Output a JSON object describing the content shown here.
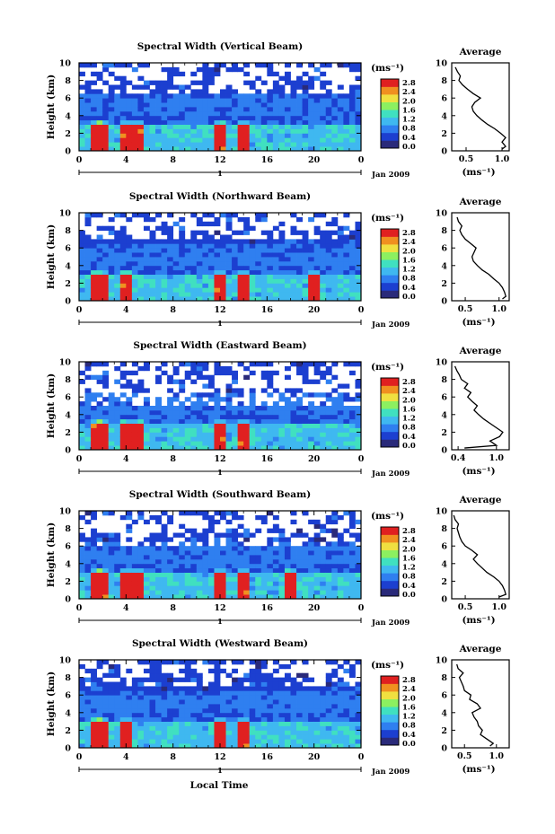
{
  "figure": {
    "x_axis_label": "Local Time",
    "date_label": "Jan 2009",
    "day_label": "1",
    "y_axis_label": "Height (km)",
    "colorbar_unit": "(ms⁻¹)",
    "profile_title": "Average",
    "profile_xlabel": "(ms⁻¹)"
  },
  "chart_data": [
    {
      "type": "heatmap",
      "title": "Spectral Width (Vertical Beam)",
      "x_ticks": [
        "0",
        "4",
        "8",
        "12",
        "16",
        "20",
        "0"
      ],
      "y_ticks": [
        "0",
        "2",
        "4",
        "6",
        "8",
        "10"
      ],
      "xlim": [
        0,
        24
      ],
      "ylim": [
        0,
        10
      ],
      "colorbar": {
        "ticks": [
          "0.0",
          "0.4",
          "0.8",
          "1.2",
          "1.6",
          "2.0",
          "2.4",
          "2.8"
        ],
        "range": [
          0.0,
          2.8
        ],
        "colors": [
          "#2a2a7a",
          "#1c3fd0",
          "#2f7ff0",
          "#3fb8f0",
          "#40e0c0",
          "#8cf060",
          "#f0e040",
          "#f09020",
          "#e02020"
        ]
      },
      "data_gap_above_km": 6.3,
      "hotspots_hour": [
        1.5,
        2,
        4,
        5,
        12,
        14
      ],
      "profile": {
        "title": "Average",
        "xlabel": "(ms⁻¹)",
        "x_ticks": [
          "0.5",
          "1.0"
        ],
        "xlim": [
          0.3,
          1.1
        ],
        "y_ticks": [
          "0",
          "2",
          "4",
          "6",
          "8",
          "10"
        ],
        "ylim": [
          0,
          10
        ],
        "height": [
          0.2,
          0.5,
          1.0,
          1.5,
          2.0,
          2.5,
          3.0,
          3.5,
          4.0,
          4.5,
          5.0,
          5.5,
          6.0,
          6.5,
          7.0,
          7.5,
          8.0,
          8.5,
          9.0,
          9.5
        ],
        "value": [
          1.0,
          1.05,
          1.0,
          1.05,
          0.98,
          0.9,
          0.8,
          0.72,
          0.65,
          0.6,
          0.58,
          0.62,
          0.7,
          0.6,
          0.52,
          0.45,
          0.4,
          0.42,
          0.38,
          0.35
        ]
      }
    },
    {
      "type": "heatmap",
      "title": "Spectral Width (Northward Beam)",
      "x_ticks": [
        "0",
        "4",
        "8",
        "12",
        "16",
        "20",
        "0"
      ],
      "y_ticks": [
        "0",
        "2",
        "4",
        "6",
        "8",
        "10"
      ],
      "xlim": [
        0,
        24
      ],
      "ylim": [
        0,
        10
      ],
      "colorbar": {
        "ticks": [
          "0.0",
          "0.4",
          "0.8",
          "1.2",
          "1.6",
          "2.0",
          "2.4",
          "2.8"
        ],
        "range": [
          0.0,
          2.8
        ],
        "colors": [
          "#2a2a7a",
          "#1c3fd0",
          "#2f7ff0",
          "#3fb8f0",
          "#40e0c0",
          "#8cf060",
          "#f0e040",
          "#f09020",
          "#e02020"
        ]
      },
      "data_gap_above_km": 7.0,
      "hotspots_hour": [
        1.5,
        2,
        4,
        12,
        14,
        20
      ],
      "profile": {
        "title": "Average",
        "xlabel": "(ms⁻¹)",
        "x_ticks": [
          "0.5",
          "1.0"
        ],
        "xlim": [
          0.3,
          1.15
        ],
        "y_ticks": [
          "0",
          "2",
          "4",
          "6",
          "8",
          "10"
        ],
        "ylim": [
          0,
          10
        ],
        "height": [
          0.2,
          0.5,
          1.0,
          1.5,
          2.0,
          2.5,
          3.0,
          3.5,
          4.0,
          4.5,
          5.0,
          5.5,
          6.0,
          6.5,
          7.0,
          7.5,
          8.0,
          8.5,
          9.0,
          9.5
        ],
        "value": [
          1.05,
          1.1,
          1.08,
          1.05,
          1.0,
          0.92,
          0.85,
          0.75,
          0.68,
          0.62,
          0.6,
          0.63,
          0.66,
          0.58,
          0.5,
          0.45,
          0.42,
          0.45,
          0.4,
          0.38
        ]
      }
    },
    {
      "type": "heatmap",
      "title": "Spectral Width (Eastward Beam)",
      "x_ticks": [
        "0",
        "4",
        "8",
        "12",
        "16",
        "20",
        "0"
      ],
      "y_ticks": [
        "0",
        "2",
        "4",
        "6",
        "8",
        "10"
      ],
      "xlim": [
        0,
        24
      ],
      "ylim": [
        0,
        10
      ],
      "colorbar": {
        "ticks": [
          "0.0",
          "0.4",
          "0.8",
          "1.2",
          "1.6",
          "2.0",
          "2.4",
          "2.8"
        ],
        "range": [
          0.0,
          2.8
        ],
        "colors": [
          "#2a2a7a",
          "#1c3fd0",
          "#2f7ff0",
          "#3fb8f0",
          "#40e0c0",
          "#8cf060",
          "#f0e040",
          "#f09020",
          "#e02020"
        ]
      },
      "data_gap_above_km": 5.0,
      "hotspots_hour": [
        1.5,
        2,
        4,
        5,
        12,
        14
      ],
      "profile": {
        "title": "Average",
        "xlabel": "(ms⁻¹)",
        "x_ticks": [
          "0.4",
          "1.0"
        ],
        "xlim": [
          0.3,
          1.2
        ],
        "y_ticks": [
          "0",
          "2",
          "4",
          "6",
          "8",
          "10"
        ],
        "ylim": [
          0,
          10
        ],
        "height": [
          0.2,
          0.5,
          1.0,
          1.5,
          2.0,
          2.5,
          3.0,
          3.5,
          4.0,
          4.5,
          5.0,
          5.5,
          6.0,
          6.5,
          7.0,
          7.5,
          8.0,
          8.5,
          9.0,
          9.5
        ],
        "value": [
          0.5,
          1.0,
          0.9,
          1.05,
          1.1,
          1.0,
          0.9,
          0.8,
          0.72,
          0.65,
          0.7,
          0.62,
          0.55,
          0.6,
          0.5,
          0.55,
          0.45,
          0.42,
          0.38,
          0.35
        ]
      }
    },
    {
      "type": "heatmap",
      "title": "Spectral Width (Southward Beam)",
      "x_ticks": [
        "0",
        "4",
        "8",
        "12",
        "16",
        "20",
        "0"
      ],
      "y_ticks": [
        "0",
        "2",
        "4",
        "6",
        "8",
        "10"
      ],
      "xlim": [
        0,
        24
      ],
      "ylim": [
        0,
        10
      ],
      "colorbar": {
        "ticks": [
          "0.0",
          "0.4",
          "0.8",
          "1.2",
          "1.6",
          "2.0",
          "2.4",
          "2.8"
        ],
        "range": [
          0.0,
          2.8
        ],
        "colors": [
          "#2a2a7a",
          "#1c3fd0",
          "#2f7ff0",
          "#3fb8f0",
          "#40e0c0",
          "#8cf060",
          "#f0e040",
          "#f09020",
          "#e02020"
        ]
      },
      "data_gap_above_km": 6.0,
      "hotspots_hour": [
        1.5,
        2,
        4,
        5,
        12,
        14,
        18
      ],
      "profile": {
        "title": "Average",
        "xlabel": "(ms⁻¹)",
        "x_ticks": [
          "0.5",
          "1.0"
        ],
        "xlim": [
          0.3,
          1.15
        ],
        "y_ticks": [
          "0",
          "2",
          "4",
          "6",
          "8",
          "10"
        ],
        "ylim": [
          0,
          10
        ],
        "height": [
          0.2,
          0.5,
          1.0,
          1.5,
          2.0,
          2.5,
          3.0,
          3.5,
          4.0,
          4.5,
          5.0,
          5.5,
          6.0,
          6.5,
          7.0,
          7.5,
          8.0,
          8.5,
          9.0,
          9.5
        ],
        "value": [
          1.0,
          1.1,
          1.08,
          1.05,
          1.0,
          0.92,
          0.82,
          0.75,
          0.68,
          0.62,
          0.68,
          0.6,
          0.5,
          0.45,
          0.42,
          0.4,
          0.38,
          0.4,
          0.35,
          0.33
        ]
      }
    },
    {
      "type": "heatmap",
      "title": "Spectral Width (Westward Beam)",
      "x_ticks": [
        "0",
        "4",
        "8",
        "12",
        "16",
        "20",
        "0"
      ],
      "y_ticks": [
        "0",
        "2",
        "4",
        "6",
        "8",
        "10"
      ],
      "xlim": [
        0,
        24
      ],
      "ylim": [
        0,
        10
      ],
      "colorbar": {
        "ticks": [
          "0.0",
          "0.4",
          "0.8",
          "1.2",
          "1.6",
          "2.0",
          "2.4",
          "2.8"
        ],
        "range": [
          0.0,
          2.8
        ],
        "colors": [
          "#2a2a7a",
          "#1c3fd0",
          "#2f7ff0",
          "#3fb8f0",
          "#40e0c0",
          "#8cf060",
          "#f0e040",
          "#f09020",
          "#e02020"
        ]
      },
      "data_gap_above_km": 7.0,
      "hotspots_hour": [
        1.5,
        2,
        4,
        12,
        14
      ],
      "profile": {
        "title": "Average",
        "xlabel": "(ms⁻¹)",
        "x_ticks": [
          "0.5",
          "1.0"
        ],
        "xlim": [
          0.3,
          1.2
        ],
        "y_ticks": [
          "0",
          "2",
          "4",
          "6",
          "8",
          "10"
        ],
        "ylim": [
          0,
          10
        ],
        "height": [
          0.2,
          0.5,
          1.0,
          1.5,
          2.0,
          2.5,
          3.0,
          3.5,
          4.0,
          4.5,
          5.0,
          5.5,
          6.0,
          6.5,
          7.0,
          7.5,
          8.0,
          8.5,
          9.0,
          9.5
        ],
        "value": [
          0.9,
          0.95,
          0.85,
          0.75,
          0.78,
          0.72,
          0.7,
          0.65,
          0.62,
          0.75,
          0.7,
          0.58,
          0.6,
          0.5,
          0.48,
          0.45,
          0.42,
          0.48,
          0.4,
          0.38
        ]
      }
    }
  ]
}
